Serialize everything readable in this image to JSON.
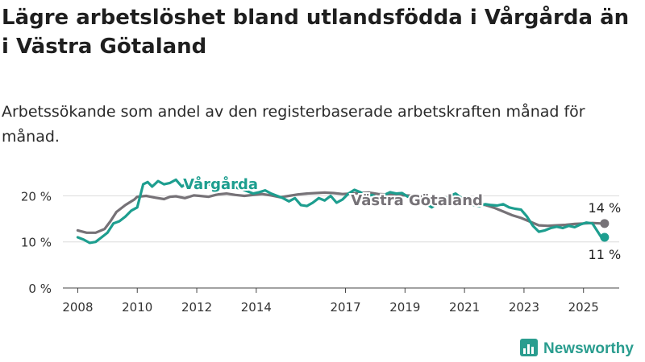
{
  "header": {
    "title": "Lägre arbetslöshet bland utlandsfödda i Vårgårda än i Västra Götaland",
    "subtitle": "Arbetssökande som andel av den registerbaserade arbetskraften månad för månad."
  },
  "brand": {
    "name": "Newsworthy",
    "icon": "bar-chart-icon",
    "color": "#2a9d8f"
  },
  "chart_data": {
    "type": "line",
    "x_unit": "year",
    "xlim": [
      2007.5,
      2026.2
    ],
    "ylim": [
      0,
      22
    ],
    "x_ticks": [
      {
        "value": 2008,
        "label": "2008"
      },
      {
        "value": 2010,
        "label": "2010"
      },
      {
        "value": 2012,
        "label": "2012"
      },
      {
        "value": 2014,
        "label": "2014"
      },
      {
        "value": 2017,
        "label": "2017"
      },
      {
        "value": 2019,
        "label": "2019"
      },
      {
        "value": 2021,
        "label": "2021"
      },
      {
        "value": 2023,
        "label": "2023"
      },
      {
        "value": 2025,
        "label": "2025"
      }
    ],
    "y_ticks": [
      {
        "value": 0,
        "label": "0 %"
      },
      {
        "value": 10,
        "label": "10 %"
      },
      {
        "value": 20,
        "label": "20 %"
      }
    ],
    "grid": true,
    "series": [
      {
        "name": "Västra Götaland",
        "color": "#767277",
        "end_label": "14 %",
        "x": [
          2008.0,
          2008.3,
          2008.6,
          2008.9,
          2009.1,
          2009.3,
          2009.6,
          2009.9,
          2010.0,
          2010.3,
          2010.6,
          2010.9,
          2011.1,
          2011.3,
          2011.6,
          2011.9,
          2012.1,
          2012.4,
          2012.7,
          2013.0,
          2013.3,
          2013.6,
          2013.9,
          2014.2,
          2014.5,
          2014.8,
          2015.1,
          2015.4,
          2015.7,
          2016.0,
          2016.3,
          2016.6,
          2016.9,
          2017.2,
          2017.5,
          2017.8,
          2018.1,
          2018.4,
          2018.7,
          2019.0,
          2019.3,
          2019.6,
          2019.9,
          2020.2,
          2020.5,
          2020.8,
          2021.1,
          2021.4,
          2021.7,
          2022.0,
          2022.3,
          2022.6,
          2022.9,
          2023.2,
          2023.5,
          2023.8,
          2024.1,
          2024.4,
          2024.7,
          2025.0,
          2025.3,
          2025.6
        ],
        "y": [
          12.5,
          12.0,
          12.0,
          12.8,
          14.5,
          16.5,
          18.0,
          19.2,
          19.8,
          20.0,
          19.6,
          19.3,
          19.8,
          19.9,
          19.5,
          20.1,
          20.0,
          19.8,
          20.3,
          20.5,
          20.2,
          20.0,
          20.2,
          20.4,
          20.1,
          19.7,
          20.0,
          20.3,
          20.5,
          20.6,
          20.7,
          20.6,
          20.4,
          20.5,
          20.6,
          20.7,
          20.4,
          20.3,
          20.2,
          20.1,
          20.0,
          19.8,
          19.6,
          19.5,
          19.6,
          19.4,
          19.0,
          18.5,
          18.0,
          17.4,
          16.6,
          15.8,
          15.2,
          14.4,
          13.6,
          13.5,
          13.6,
          13.7,
          13.9,
          14.0,
          14.1,
          14.0
        ]
      },
      {
        "name": "Vårgårda",
        "color": "#1d9e8f",
        "end_label": "11 %",
        "x": [
          2008.0,
          2008.2,
          2008.4,
          2008.6,
          2008.8,
          2009.0,
          2009.2,
          2009.4,
          2009.6,
          2009.8,
          2010.0,
          2010.2,
          2010.35,
          2010.5,
          2010.7,
          2010.9,
          2011.1,
          2011.3,
          2011.5,
          2011.7,
          2011.9,
          2012.1,
          2012.3,
          2012.5,
          2012.7,
          2012.9,
          2013.1,
          2013.3,
          2013.5,
          2013.7,
          2013.9,
          2014.1,
          2014.3,
          2014.5,
          2014.7,
          2014.9,
          2015.1,
          2015.3,
          2015.5,
          2015.7,
          2015.9,
          2016.1,
          2016.3,
          2016.5,
          2016.7,
          2016.9,
          2017.1,
          2017.3,
          2017.5,
          2017.7,
          2017.9,
          2018.1,
          2018.3,
          2018.5,
          2018.7,
          2018.9,
          2019.1,
          2019.3,
          2019.5,
          2019.7,
          2019.9,
          2020.1,
          2020.3,
          2020.5,
          2020.7,
          2020.9,
          2021.1,
          2021.3,
          2021.5,
          2021.7,
          2021.9,
          2022.1,
          2022.3,
          2022.5,
          2022.7,
          2022.9,
          2023.1,
          2023.3,
          2023.5,
          2023.7,
          2023.9,
          2024.1,
          2024.3,
          2024.5,
          2024.7,
          2024.9,
          2025.1,
          2025.3,
          2025.45,
          2025.6
        ],
        "y": [
          11.0,
          10.5,
          9.8,
          10.0,
          11.0,
          12.0,
          14.0,
          14.5,
          15.5,
          16.8,
          17.5,
          22.5,
          23.0,
          22.0,
          23.2,
          22.5,
          22.8,
          23.5,
          22.0,
          23.0,
          22.8,
          22.5,
          23.0,
          22.2,
          22.5,
          23.0,
          22.0,
          21.8,
          21.5,
          21.0,
          20.5,
          20.8,
          21.2,
          20.5,
          20.0,
          19.5,
          18.8,
          19.5,
          18.0,
          17.8,
          18.5,
          19.5,
          19.0,
          20.0,
          18.5,
          19.2,
          20.5,
          21.3,
          20.8,
          20.0,
          20.2,
          19.5,
          20.2,
          20.8,
          20.5,
          20.6,
          19.8,
          19.5,
          19.0,
          18.3,
          17.5,
          18.5,
          19.0,
          20.0,
          20.5,
          19.5,
          18.5,
          18.0,
          17.8,
          18.2,
          18.0,
          17.9,
          18.2,
          17.5,
          17.2,
          17.0,
          15.5,
          13.5,
          12.2,
          12.5,
          13.0,
          13.3,
          13.0,
          13.5,
          13.2,
          13.8,
          14.2,
          14.0,
          12.5,
          11.0
        ]
      }
    ],
    "annotations": [
      {
        "text": "Vårgårda",
        "series": 1,
        "x": 2012.8,
        "y": 22.5
      },
      {
        "text": "Västra Götaland",
        "series": 0,
        "x": 2019.4,
        "y": 19.0
      }
    ]
  }
}
